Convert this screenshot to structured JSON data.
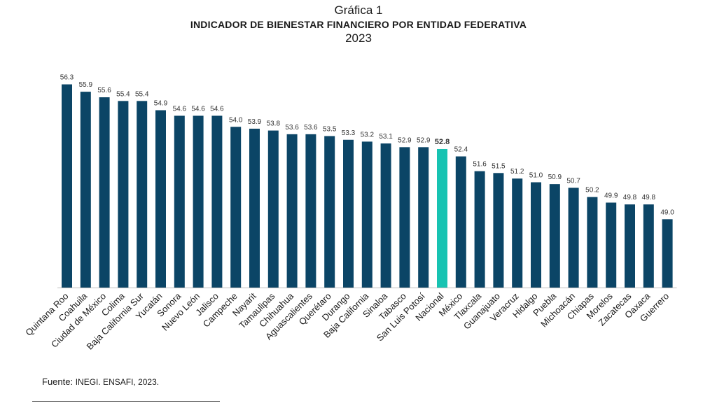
{
  "header": {
    "figure_number": "Gráfica 1",
    "title": "INDICADOR DE BIENESTAR FINANCIERO POR ENTIDAD FEDERATIVA",
    "year": "2023"
  },
  "footer": {
    "source_label": "Fuente:",
    "source_text": "INEGI. ENSAFI, 2023."
  },
  "chart_data": {
    "type": "bar",
    "title": "INDICADOR DE BIENESTAR FINANCIERO POR ENTIDAD FEDERATIVA",
    "subtitle": "2023",
    "xlabel": "",
    "ylabel": "",
    "grid": false,
    "ylim": [
      45.3,
      56.7
    ],
    "colors": {
      "bar": "#0b4566",
      "highlight": "#17c3b2"
    },
    "highlight_category": "Nacional",
    "categories": [
      "Quintana Roo",
      "Coahuila",
      "Ciudad de México",
      "Colima",
      "Baja California Sur",
      "Yucatán",
      "Sonora",
      "Nuevo León",
      "Jalisco",
      "Campeche",
      "Nayarit",
      "Tamaulipas",
      "Chihuahua",
      "Aguascalientes",
      "Querétaro",
      "Durango",
      "Baja California",
      "Sinaloa",
      "Tabasco",
      "San Luis Potosí",
      "Nacional",
      "México",
      "Tlaxcala",
      "Guanajuato",
      "Veracruz",
      "Hidalgo",
      "Puebla",
      "Michoacán",
      "Chiapas",
      "Morelos",
      "Zacatecas",
      "Oaxaca",
      "Guerrero"
    ],
    "values": [
      56.3,
      55.9,
      55.6,
      55.4,
      55.4,
      54.9,
      54.6,
      54.6,
      54.6,
      54.0,
      53.9,
      53.8,
      53.6,
      53.6,
      53.5,
      53.3,
      53.2,
      53.1,
      52.9,
      52.9,
      52.8,
      52.4,
      51.6,
      51.5,
      51.2,
      51.0,
      50.9,
      50.7,
      50.2,
      49.9,
      49.8,
      49.8,
      49.0
    ],
    "data_labels": [
      "56.3",
      "55.9",
      "55.6",
      "55.4",
      "55.4",
      "54.9",
      "54.6",
      "54.6",
      "54.6",
      "54.0",
      "53.9",
      "53.8",
      "53.6",
      "53.6",
      "53.5",
      "53.3",
      "53.2",
      "53.1",
      "52.9",
      "52.9",
      "52.8",
      "52.4",
      "51.6",
      "51.5",
      "51.2",
      "51.0",
      "50.9",
      "50.7",
      "50.2",
      "49.9",
      "49.8",
      "49.8",
      "49.0"
    ]
  }
}
